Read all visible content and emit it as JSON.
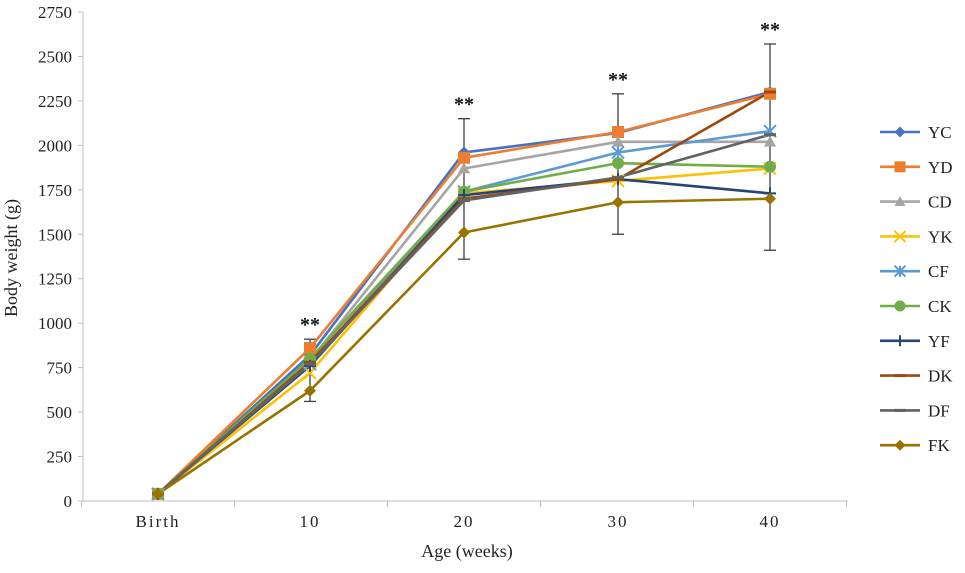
{
  "chart_data": {
    "type": "line",
    "xlabel": "Age (weeks)",
    "ylabel": "Body weight (g)",
    "categories": [
      "Birth",
      "10",
      "20",
      "30",
      "40"
    ],
    "ylim": [
      0,
      2750
    ],
    "yticks": [
      0,
      250,
      500,
      750,
      1000,
      1250,
      1500,
      1750,
      2000,
      2250,
      2500,
      2750
    ],
    "grid": false,
    "legend_position": "right",
    "significance_labels": [
      {
        "category": "10",
        "text": "**"
      },
      {
        "category": "20",
        "text": "**"
      },
      {
        "category": "30",
        "text": "**"
      },
      {
        "category": "40",
        "text": "**"
      }
    ],
    "series": [
      {
        "name": "YC",
        "color": "#4472C4",
        "marker": "diamond",
        "values": [
          40,
          820,
          1960,
          2070,
          2300
        ]
      },
      {
        "name": "YD",
        "color": "#ED7D31",
        "marker": "square",
        "values": [
          40,
          860,
          1930,
          2075,
          2290
        ]
      },
      {
        "name": "CD",
        "color": "#A5A5A5",
        "marker": "triangle",
        "values": [
          40,
          790,
          1870,
          2020,
          2020
        ]
      },
      {
        "name": "YK",
        "color": "#FFC000",
        "marker": "x",
        "values": [
          40,
          720,
          1730,
          1800,
          1870
        ]
      },
      {
        "name": "CF",
        "color": "#5B9BD5",
        "marker": "star",
        "values": [
          40,
          770,
          1740,
          1960,
          2080
        ]
      },
      {
        "name": "CK",
        "color": "#70AD47",
        "marker": "circle",
        "values": [
          40,
          800,
          1740,
          1900,
          1880
        ]
      },
      {
        "name": "YF",
        "color": "#264478",
        "marker": "plus",
        "values": [
          40,
          760,
          1720,
          1810,
          1730
        ]
      },
      {
        "name": "DK",
        "color": "#9E480E",
        "marker": "dash",
        "values": [
          40,
          780,
          1700,
          1810,
          2300
        ]
      },
      {
        "name": "DF",
        "color": "#636363",
        "marker": "dash",
        "values": [
          40,
          770,
          1690,
          1820,
          2060
        ]
      },
      {
        "name": "FK",
        "color": "#997300",
        "marker": "diamond",
        "values": [
          40,
          620,
          1510,
          1680,
          1700
        ]
      }
    ],
    "error_bars": [
      {
        "category": "10",
        "low": 560,
        "high": 910
      },
      {
        "category": "20",
        "low": 1360,
        "high": 2150
      },
      {
        "category": "30",
        "low": 1500,
        "high": 2290
      },
      {
        "category": "40",
        "low": 1410,
        "high": 2570
      }
    ]
  }
}
